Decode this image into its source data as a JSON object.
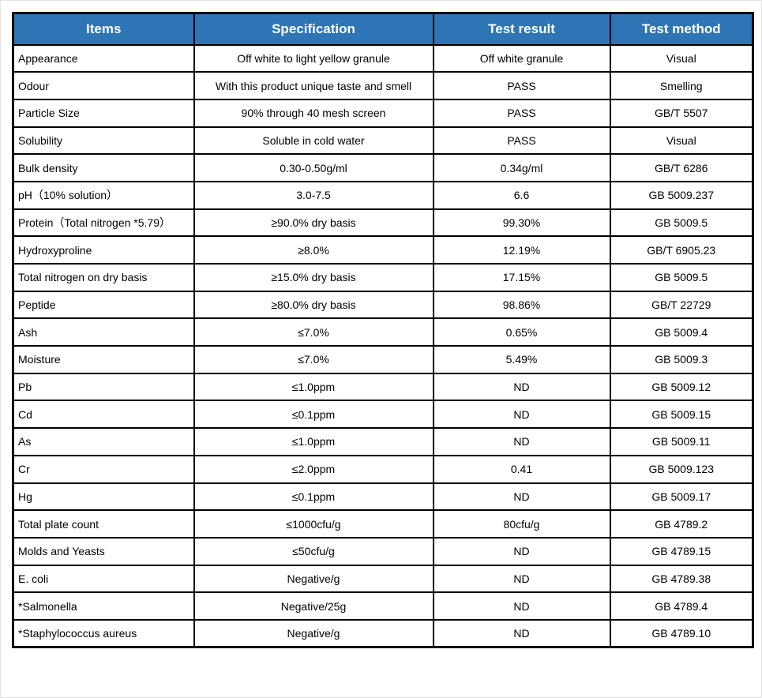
{
  "table": {
    "header_bg": "#2e75b6",
    "header_text_color": "#ffffff",
    "border_color": "#000000",
    "columns": [
      {
        "label": "Items"
      },
      {
        "label": "Specification"
      },
      {
        "label": "Test result"
      },
      {
        "label": "Test method"
      }
    ],
    "rows": [
      {
        "item": "Appearance",
        "specification": "Off white to light yellow granule",
        "test_result": "Off white granule",
        "test_method": "Visual"
      },
      {
        "item": "Odour",
        "specification": "With this product unique taste and smell",
        "test_result": "PASS",
        "test_method": "Smelling"
      },
      {
        "item": "Particle Size",
        "specification": "90% through 40 mesh screen",
        "test_result": "PASS",
        "test_method": "GB/T 5507"
      },
      {
        "item": "Solubility",
        "specification": "Soluble in cold water",
        "test_result": "PASS",
        "test_method": "Visual"
      },
      {
        "item": "Bulk density",
        "specification": "0.30-0.50g/ml",
        "test_result": "0.34g/ml",
        "test_method": "GB/T 6286"
      },
      {
        "item": "pH（10% solution）",
        "specification": "3.0-7.5",
        "test_result": "6.6",
        "test_method": "GB 5009.237"
      },
      {
        "item": "Protein（Total nitrogen *5.79）",
        "specification": "≥90.0% dry basis",
        "test_result": "99.30%",
        "test_method": "GB 5009.5"
      },
      {
        "item": "Hydroxyproline",
        "specification": "≥8.0%",
        "test_result": "12.19%",
        "test_method": "GB/T 6905.23"
      },
      {
        "item": "Total nitrogen on dry basis",
        "specification": "≥15.0% dry basis",
        "test_result": "17.15%",
        "test_method": "GB 5009.5"
      },
      {
        "item": "Peptide",
        "specification": "≥80.0% dry basis",
        "test_result": "98.86%",
        "test_method": "GB/T 22729"
      },
      {
        "item": "Ash",
        "specification": "≤7.0%",
        "test_result": "0.65%",
        "test_method": "GB 5009.4"
      },
      {
        "item": "Moisture",
        "specification": "≤7.0%",
        "test_result": "5.49%",
        "test_method": "GB 5009.3"
      },
      {
        "item": "Pb",
        "specification": "≤1.0ppm",
        "test_result": "ND",
        "test_method": "GB 5009.12"
      },
      {
        "item": "Cd",
        "specification": "≤0.1ppm",
        "test_result": "ND",
        "test_method": "GB 5009.15"
      },
      {
        "item": "As",
        "specification": "≤1.0ppm",
        "test_result": "ND",
        "test_method": "GB 5009.11"
      },
      {
        "item": "Cr",
        "specification": "≤2.0ppm",
        "test_result": "0.41",
        "test_method": "GB 5009.123"
      },
      {
        "item": "Hg",
        "specification": "≤0.1ppm",
        "test_result": "ND",
        "test_method": "GB 5009.17"
      },
      {
        "item": "Total plate count",
        "specification": "≤1000cfu/g",
        "test_result": "80cfu/g",
        "test_method": "GB 4789.2"
      },
      {
        "item": "Molds and Yeasts",
        "specification": "≤50cfu/g",
        "test_result": "ND",
        "test_method": "GB 4789.15"
      },
      {
        "item": "E. coli",
        "specification": "Negative/g",
        "test_result": "ND",
        "test_method": "GB 4789.38"
      },
      {
        "item": "*Salmonella",
        "specification": "Negative/25g",
        "test_result": "ND",
        "test_method": "GB 4789.4"
      },
      {
        "item": "*Staphylococcus aureus",
        "specification": "Negative/g",
        "test_result": "ND",
        "test_method": "GB 4789.10"
      }
    ]
  }
}
